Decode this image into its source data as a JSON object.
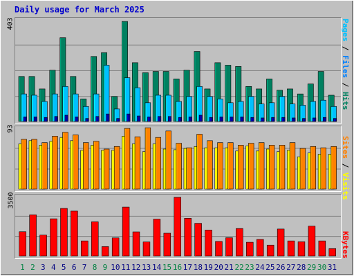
{
  "chart_data": {
    "title": "Daily usage for March 2025",
    "type": "bar",
    "categories": [
      "1",
      "2",
      "3",
      "4",
      "5",
      "6",
      "7",
      "8",
      "9",
      "10",
      "11",
      "12",
      "13",
      "14",
      "15",
      "16",
      "17",
      "18",
      "19",
      "20",
      "21",
      "22",
      "23",
      "24",
      "25",
      "26",
      "27",
      "28",
      "29",
      "30",
      "31"
    ],
    "weekend_days": [
      "1",
      "2",
      "8",
      "9",
      "15",
      "16",
      "22",
      "23",
      "29",
      "30"
    ],
    "panels": [
      {
        "id": "top",
        "ymax_label": "403",
        "ylim": [
          0,
          403
        ],
        "series": [
          {
            "name": "Hits",
            "color": "#008060",
            "values": [
              180,
              180,
              130,
              205,
              335,
              180,
              90,
              260,
              275,
              100,
              400,
              235,
              195,
              200,
              200,
              170,
              205,
              280,
              130,
              235,
              225,
              220,
              140,
              130,
              170,
              125,
              130,
              110,
              150,
              200,
              105
            ]
          },
          {
            "name": "Files",
            "color": "#00c0ff",
            "values": [
              110,
              105,
              80,
              110,
              140,
              110,
              60,
              110,
              225,
              50,
              175,
              135,
              75,
              105,
              105,
              80,
              100,
              140,
              100,
              90,
              75,
              80,
              100,
              70,
              75,
              100,
              70,
              65,
              80,
              85,
              60
            ]
          },
          {
            "name": "Pages",
            "color": "#00c0ff",
            "values": [
              18,
              18,
              16,
              20,
              25,
              18,
              12,
              20,
              30,
              12,
              30,
              22,
              18,
              20,
              20,
              16,
              18,
              25,
              16,
              18,
              18,
              18,
              16,
              14,
              16,
              16,
              14,
              12,
              14,
              16,
              12
            ]
          }
        ],
        "right_label": [
          {
            "text": "Pages",
            "color": "#00c0ff"
          },
          {
            "text": " / ",
            "color": "#000000"
          },
          {
            "text": "Files",
            "color": "#0080ff"
          },
          {
            "text": " / ",
            "color": "#000000"
          },
          {
            "text": "Hits",
            "color": "#008060"
          }
        ]
      },
      {
        "id": "mid",
        "ymax_label": "93",
        "ylim": [
          0,
          93
        ],
        "series": [
          {
            "name": "Visits",
            "color": "#ffff00",
            "values": [
              70,
              75,
              68,
              74,
              80,
              75,
              60,
              68,
              60,
              60,
              82,
              70,
              58,
              70,
              62,
              61,
              63,
              66,
              64,
              64,
              64,
              59,
              67,
              59,
              62,
              58,
              60,
              50,
              56,
              54,
              54
            ]
          },
          {
            "name": "Sites",
            "color": "#ff8000",
            "values": [
              77,
              77,
              72,
              82,
              88,
              84,
              72,
              74,
              62,
              66,
              94,
              81,
              95,
              80,
              90,
              71,
              64,
              85,
              75,
              72,
              72,
              68,
              71,
              72,
              68,
              68,
              72,
              63,
              66,
              64,
              66
            ]
          }
        ],
        "right_label": [
          {
            "text": "Sites",
            "color": "#ff8000"
          },
          {
            "text": " / ",
            "color": "#000000"
          },
          {
            "text": "Visits",
            "color": "#ffff00"
          }
        ]
      },
      {
        "id": "bot",
        "ymax_label": "3500",
        "ylim": [
          0,
          3500
        ],
        "series": [
          {
            "name": "KBytes",
            "color": "#ff0000",
            "values": [
              1450,
              2460,
              1250,
              2220,
              2840,
              2680,
              900,
              2040,
              560,
              1080,
              2920,
              1440,
              840,
              2200,
              1360,
              3500,
              2250,
              1950,
              1550,
              870,
              1090,
              1640,
              820,
              990,
              650,
              1610,
              900,
              850,
              1780,
              900,
              440
            ]
          }
        ],
        "right_label": [
          {
            "text": "KBytes",
            "color": "#ff0000"
          }
        ]
      }
    ]
  }
}
